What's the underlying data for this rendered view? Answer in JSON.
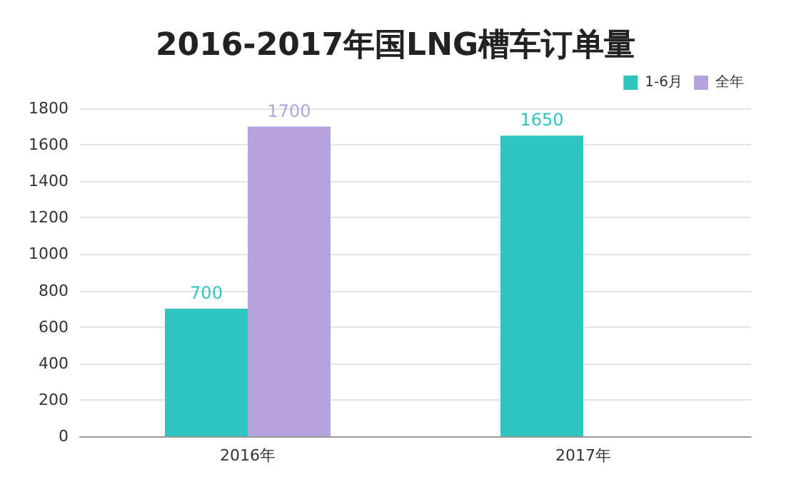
{
  "chart_data": {
    "type": "bar",
    "title": "2016-2017年国LNG槽车订单量",
    "categories": [
      "2016年",
      "2017年"
    ],
    "series": [
      {
        "name": "1-6月",
        "color": "#2ec5c1",
        "values": [
          700,
          1650
        ]
      },
      {
        "name": "全年",
        "color": "#b6a2dc",
        "values": [
          1700,
          null
        ]
      }
    ],
    "ylim": [
      0,
      1800
    ],
    "yticks": [
      0,
      200,
      400,
      600,
      800,
      1000,
      1200,
      1400,
      1600,
      1800
    ],
    "grid": "y",
    "legend": "top right",
    "data_labels": true
  }
}
